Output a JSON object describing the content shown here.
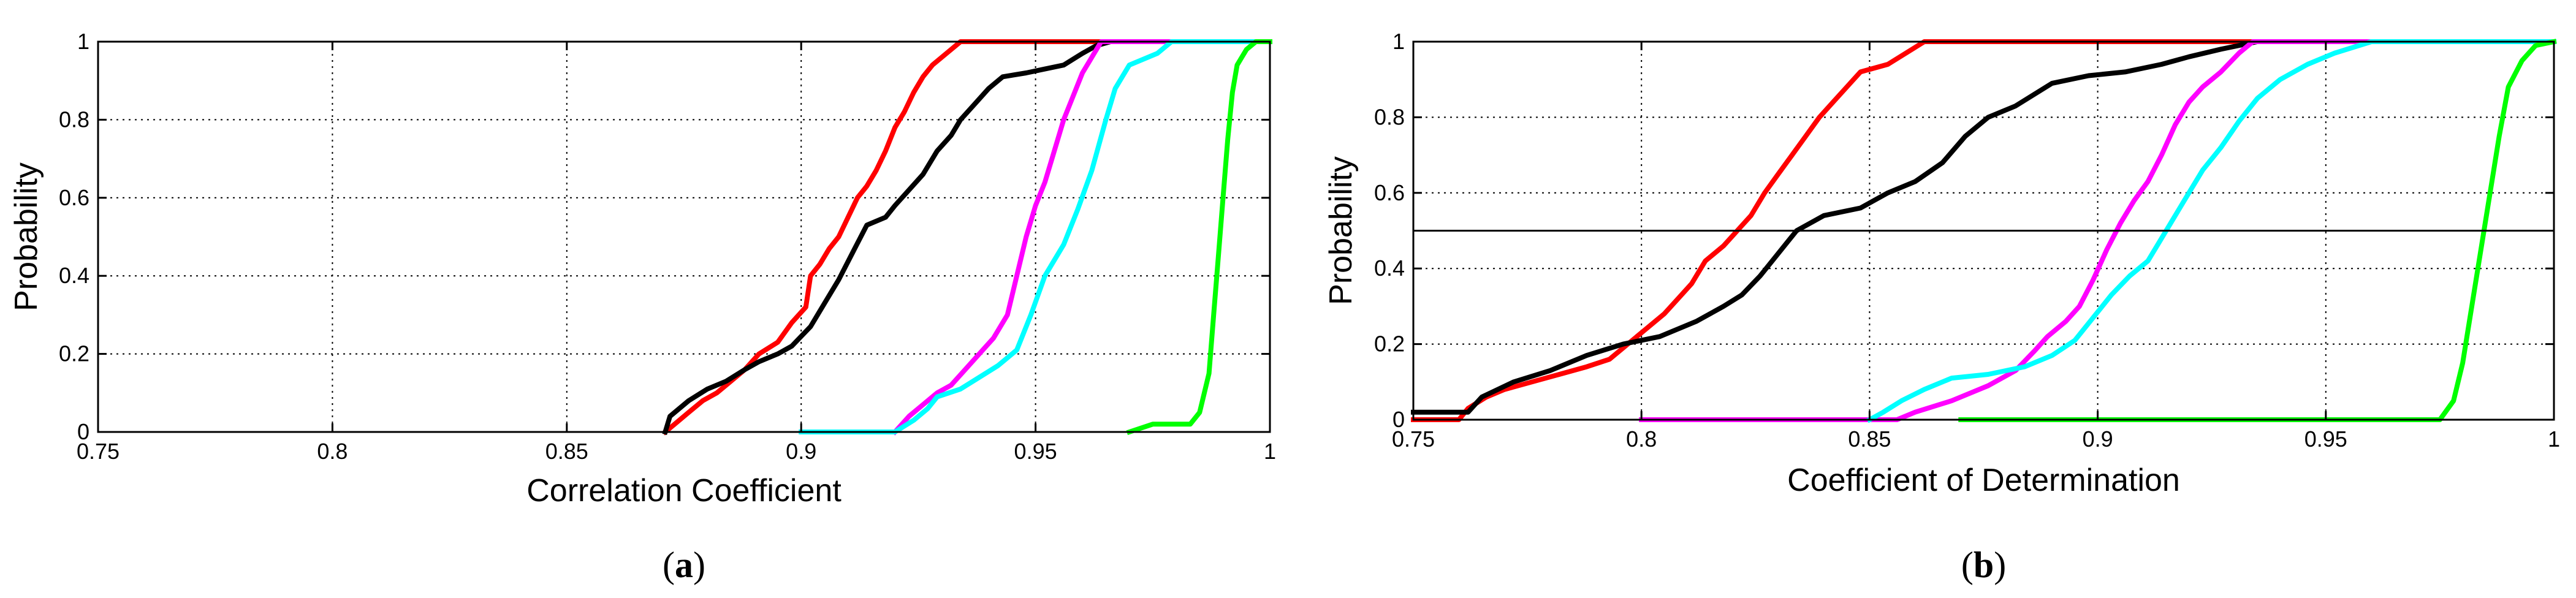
{
  "chart_data": [
    {
      "type": "line",
      "panel_label": {
        "open": "(",
        "letter": "a",
        "close": ")"
      },
      "xlabel": "Correlation Coefficient",
      "ylabel": "Probability",
      "xlim": [
        0.75,
        1
      ],
      "ylim": [
        0,
        1
      ],
      "xticks": [
        0.75,
        0.8,
        0.85,
        0.9,
        0.95,
        1
      ],
      "xtick_labels": [
        "0.75",
        "0.8",
        "0.85",
        "0.9",
        "0.95",
        "1"
      ],
      "yticks": [
        0,
        0.2,
        0.4,
        0.6,
        0.8,
        1
      ],
      "ytick_labels": [
        "0",
        "0.2",
        "0.4",
        "0.6",
        "0.8",
        "1"
      ],
      "grid": true,
      "hline": null,
      "series": [
        {
          "color": "#ff0000",
          "points": [
            [
              0.871,
              0
            ],
            [
              0.873,
              0.02
            ],
            [
              0.876,
              0.05
            ],
            [
              0.879,
              0.08
            ],
            [
              0.882,
              0.1
            ],
            [
              0.885,
              0.13
            ],
            [
              0.888,
              0.16
            ],
            [
              0.891,
              0.2
            ],
            [
              0.895,
              0.23
            ],
            [
              0.898,
              0.28
            ],
            [
              0.901,
              0.32
            ],
            [
              0.902,
              0.4
            ],
            [
              0.904,
              0.43
            ],
            [
              0.906,
              0.47
            ],
            [
              0.908,
              0.5
            ],
            [
              0.91,
              0.55
            ],
            [
              0.912,
              0.6
            ],
            [
              0.914,
              0.63
            ],
            [
              0.916,
              0.67
            ],
            [
              0.918,
              0.72
            ],
            [
              0.92,
              0.78
            ],
            [
              0.922,
              0.82
            ],
            [
              0.924,
              0.87
            ],
            [
              0.926,
              0.91
            ],
            [
              0.928,
              0.94
            ],
            [
              0.931,
              0.97
            ],
            [
              0.934,
              1
            ],
            [
              1,
              1
            ]
          ]
        },
        {
          "color": "#000000",
          "points": [
            [
              0.871,
              0
            ],
            [
              0.872,
              0.04
            ],
            [
              0.876,
              0.08
            ],
            [
              0.88,
              0.11
            ],
            [
              0.884,
              0.13
            ],
            [
              0.888,
              0.16
            ],
            [
              0.891,
              0.18
            ],
            [
              0.895,
              0.2
            ],
            [
              0.898,
              0.22
            ],
            [
              0.902,
              0.27
            ],
            [
              0.905,
              0.33
            ],
            [
              0.908,
              0.39
            ],
            [
              0.911,
              0.46
            ],
            [
              0.914,
              0.53
            ],
            [
              0.918,
              0.55
            ],
            [
              0.92,
              0.58
            ],
            [
              0.923,
              0.62
            ],
            [
              0.926,
              0.66
            ],
            [
              0.929,
              0.72
            ],
            [
              0.932,
              0.76
            ],
            [
              0.934,
              0.8
            ],
            [
              0.937,
              0.84
            ],
            [
              0.94,
              0.88
            ],
            [
              0.943,
              0.91
            ],
            [
              0.948,
              0.92
            ],
            [
              0.952,
              0.93
            ],
            [
              0.956,
              0.94
            ],
            [
              0.96,
              0.97
            ],
            [
              0.963,
              0.99
            ],
            [
              0.966,
              1
            ],
            [
              1,
              1
            ]
          ]
        },
        {
          "color": "#ff00ff",
          "points": [
            [
              0.92,
              0
            ],
            [
              0.923,
              0.04
            ],
            [
              0.926,
              0.07
            ],
            [
              0.929,
              0.1
            ],
            [
              0.932,
              0.12
            ],
            [
              0.935,
              0.16
            ],
            [
              0.938,
              0.2
            ],
            [
              0.941,
              0.24
            ],
            [
              0.944,
              0.3
            ],
            [
              0.946,
              0.4
            ],
            [
              0.948,
              0.5
            ],
            [
              0.95,
              0.58
            ],
            [
              0.952,
              0.64
            ],
            [
              0.954,
              0.72
            ],
            [
              0.956,
              0.8
            ],
            [
              0.958,
              0.86
            ],
            [
              0.96,
              0.92
            ],
            [
              0.962,
              0.96
            ],
            [
              0.964,
              1
            ],
            [
              1,
              1
            ]
          ]
        },
        {
          "color": "#00ffff",
          "points": [
            [
              0.9,
              0
            ],
            [
              0.92,
              0
            ],
            [
              0.924,
              0.03
            ],
            [
              0.927,
              0.06
            ],
            [
              0.929,
              0.09
            ],
            [
              0.934,
              0.11
            ],
            [
              0.938,
              0.14
            ],
            [
              0.942,
              0.17
            ],
            [
              0.946,
              0.21
            ],
            [
              0.949,
              0.3
            ],
            [
              0.952,
              0.4
            ],
            [
              0.956,
              0.48
            ],
            [
              0.959,
              0.57
            ],
            [
              0.962,
              0.67
            ],
            [
              0.965,
              0.8
            ],
            [
              0.967,
              0.88
            ],
            [
              0.97,
              0.94
            ],
            [
              0.976,
              0.97
            ],
            [
              0.979,
              1
            ],
            [
              1,
              1
            ]
          ]
        },
        {
          "color": "#00ff00",
          "points": [
            [
              0.97,
              0
            ],
            [
              0.975,
              0.02
            ],
            [
              0.983,
              0.02
            ],
            [
              0.985,
              0.05
            ],
            [
              0.987,
              0.15
            ],
            [
              0.988,
              0.3
            ],
            [
              0.989,
              0.45
            ],
            [
              0.99,
              0.6
            ],
            [
              0.991,
              0.75
            ],
            [
              0.992,
              0.87
            ],
            [
              0.993,
              0.94
            ],
            [
              0.995,
              0.98
            ],
            [
              0.997,
              1
            ],
            [
              1,
              1
            ]
          ]
        }
      ]
    },
    {
      "type": "line",
      "panel_label": {
        "open": "(",
        "letter": "b",
        "close": ")"
      },
      "xlabel": "Coefficient of Determination",
      "ylabel": "Probability",
      "xlim": [
        0.75,
        1
      ],
      "ylim": [
        0,
        1
      ],
      "xticks": [
        0.75,
        0.8,
        0.85,
        0.9,
        0.95,
        1
      ],
      "xtick_labels": [
        "0.75",
        "0.8",
        "0.85",
        "0.9",
        "0.95",
        "1"
      ],
      "yticks": [
        0,
        0.2,
        0.4,
        0.6,
        0.8,
        1
      ],
      "ytick_labels": [
        "0",
        "0.2",
        "0.4",
        "0.6",
        "0.8",
        "1"
      ],
      "grid": true,
      "hline": 0.5,
      "series": [
        {
          "color": "#ff0000",
          "points": [
            [
              0.75,
              0
            ],
            [
              0.76,
              0
            ],
            [
              0.762,
              0.03
            ],
            [
              0.766,
              0.06
            ],
            [
              0.77,
              0.08
            ],
            [
              0.776,
              0.1
            ],
            [
              0.782,
              0.12
            ],
            [
              0.788,
              0.14
            ],
            [
              0.793,
              0.16
            ],
            [
              0.797,
              0.2
            ],
            [
              0.801,
              0.24
            ],
            [
              0.805,
              0.28
            ],
            [
              0.808,
              0.32
            ],
            [
              0.811,
              0.36
            ],
            [
              0.814,
              0.42
            ],
            [
              0.818,
              0.46
            ],
            [
              0.821,
              0.5
            ],
            [
              0.824,
              0.54
            ],
            [
              0.827,
              0.6
            ],
            [
              0.83,
              0.65
            ],
            [
              0.833,
              0.7
            ],
            [
              0.836,
              0.75
            ],
            [
              0.839,
              0.8
            ],
            [
              0.842,
              0.84
            ],
            [
              0.845,
              0.88
            ],
            [
              0.848,
              0.92
            ],
            [
              0.854,
              0.94
            ],
            [
              0.858,
              0.97
            ],
            [
              0.862,
              1
            ],
            [
              1,
              1
            ]
          ]
        },
        {
          "color": "#000000",
          "points": [
            [
              0.75,
              0.02
            ],
            [
              0.762,
              0.02
            ],
            [
              0.765,
              0.06
            ],
            [
              0.772,
              0.1
            ],
            [
              0.78,
              0.13
            ],
            [
              0.788,
              0.17
            ],
            [
              0.796,
              0.2
            ],
            [
              0.804,
              0.22
            ],
            [
              0.812,
              0.26
            ],
            [
              0.818,
              0.3
            ],
            [
              0.822,
              0.33
            ],
            [
              0.826,
              0.38
            ],
            [
              0.83,
              0.44
            ],
            [
              0.834,
              0.5
            ],
            [
              0.84,
              0.54
            ],
            [
              0.848,
              0.56
            ],
            [
              0.854,
              0.6
            ],
            [
              0.86,
              0.63
            ],
            [
              0.866,
              0.68
            ],
            [
              0.871,
              0.75
            ],
            [
              0.876,
              0.8
            ],
            [
              0.882,
              0.83
            ],
            [
              0.886,
              0.86
            ],
            [
              0.89,
              0.89
            ],
            [
              0.898,
              0.91
            ],
            [
              0.906,
              0.92
            ],
            [
              0.914,
              0.94
            ],
            [
              0.92,
              0.96
            ],
            [
              0.927,
              0.98
            ],
            [
              0.935,
              1
            ],
            [
              1,
              1
            ]
          ]
        },
        {
          "color": "#ff00ff",
          "points": [
            [
              0.8,
              0
            ],
            [
              0.856,
              0
            ],
            [
              0.86,
              0.02
            ],
            [
              0.868,
              0.05
            ],
            [
              0.876,
              0.09
            ],
            [
              0.882,
              0.13
            ],
            [
              0.886,
              0.18
            ],
            [
              0.889,
              0.22
            ],
            [
              0.893,
              0.26
            ],
            [
              0.896,
              0.3
            ],
            [
              0.899,
              0.37
            ],
            [
              0.902,
              0.45
            ],
            [
              0.905,
              0.52
            ],
            [
              0.908,
              0.58
            ],
            [
              0.911,
              0.63
            ],
            [
              0.914,
              0.7
            ],
            [
              0.917,
              0.78
            ],
            [
              0.92,
              0.84
            ],
            [
              0.923,
              0.88
            ],
            [
              0.927,
              0.92
            ],
            [
              0.931,
              0.97
            ],
            [
              0.934,
              1
            ],
            [
              1,
              1
            ]
          ]
        },
        {
          "color": "#00ffff",
          "points": [
            [
              0.85,
              0
            ],
            [
              0.853,
              0.02
            ],
            [
              0.857,
              0.05
            ],
            [
              0.862,
              0.08
            ],
            [
              0.868,
              0.11
            ],
            [
              0.876,
              0.12
            ],
            [
              0.884,
              0.14
            ],
            [
              0.89,
              0.17
            ],
            [
              0.895,
              0.21
            ],
            [
              0.899,
              0.27
            ],
            [
              0.903,
              0.33
            ],
            [
              0.907,
              0.38
            ],
            [
              0.911,
              0.42
            ],
            [
              0.915,
              0.5
            ],
            [
              0.919,
              0.58
            ],
            [
              0.923,
              0.66
            ],
            [
              0.927,
              0.72
            ],
            [
              0.931,
              0.79
            ],
            [
              0.935,
              0.85
            ],
            [
              0.94,
              0.9
            ],
            [
              0.946,
              0.94
            ],
            [
              0.952,
              0.97
            ],
            [
              0.96,
              1
            ],
            [
              1,
              1
            ]
          ]
        },
        {
          "color": "#00ff00",
          "points": [
            [
              0.87,
              0
            ],
            [
              0.975,
              0
            ],
            [
              0.978,
              0.05
            ],
            [
              0.98,
              0.15
            ],
            [
              0.982,
              0.3
            ],
            [
              0.984,
              0.45
            ],
            [
              0.986,
              0.6
            ],
            [
              0.988,
              0.75
            ],
            [
              0.99,
              0.88
            ],
            [
              0.993,
              0.95
            ],
            [
              0.996,
              0.99
            ],
            [
              1,
              1
            ]
          ]
        }
      ]
    }
  ]
}
